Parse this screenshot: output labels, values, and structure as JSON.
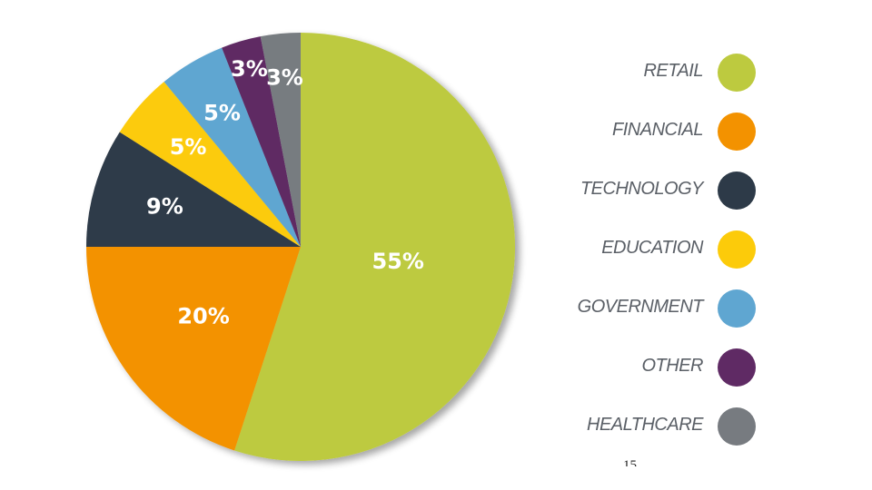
{
  "chart_data": {
    "type": "pie",
    "title": "",
    "categories": [
      "RETAIL",
      "FINANCIAL",
      "TECHNOLOGY",
      "EDUCATION",
      "GOVERNMENT",
      "OTHER",
      "HEALTHCARE"
    ],
    "values": [
      55,
      20,
      9,
      5,
      5,
      3,
      3
    ],
    "labels": [
      "55%",
      "20%",
      "9%",
      "5%",
      "5%",
      "3%",
      "3%"
    ],
    "colors": [
      "#bdca3f",
      "#f39200",
      "#2d3a48",
      "#fccb0a",
      "#5fa6d1",
      "#5f2a64",
      "#777b80"
    ],
    "legend_position": "right"
  },
  "page_number": "15"
}
